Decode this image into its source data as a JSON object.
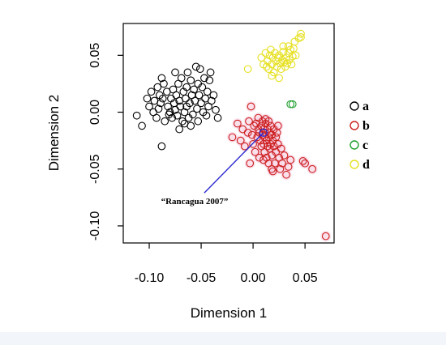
{
  "chart_data": {
    "type": "scatter",
    "xlabel": "Dimension 1",
    "ylabel": "Dimension 2",
    "xlim": [
      -0.125,
      0.078
    ],
    "ylim": [
      -0.115,
      0.078
    ],
    "xticks": [
      -0.1,
      -0.05,
      0.0,
      0.05
    ],
    "xtick_labels": [
      "-0.10",
      "-0.05",
      "0.00",
      "0.05"
    ],
    "yticks": [
      -0.1,
      -0.05,
      0.0,
      0.05
    ],
    "ytick_labels": [
      "-0.10",
      "-0.05",
      "0.00",
      "0.05"
    ],
    "grid": false,
    "legend_position": "right",
    "annotation": {
      "text": "“Rancagua 2007”",
      "arrow_tip": [
        0.01,
        -0.018
      ],
      "arrow_tail": [
        -0.047,
        -0.071
      ],
      "color": "#2b2bcf"
    },
    "series": [
      {
        "name": "a",
        "color": "#000000",
        "points": [
          [
            -0.112,
            -0.003
          ],
          [
            -0.107,
            -0.012
          ],
          [
            -0.102,
            0.012
          ],
          [
            -0.1,
            0.005
          ],
          [
            -0.098,
            0.018
          ],
          [
            -0.096,
            0.0
          ],
          [
            -0.095,
            0.01
          ],
          [
            -0.093,
            -0.005
          ],
          [
            -0.092,
            0.022
          ],
          [
            -0.091,
            0.003
          ],
          [
            -0.09,
            0.015
          ],
          [
            -0.089,
            0.008
          ],
          [
            -0.088,
            -0.03
          ],
          [
            -0.087,
            0.012
          ],
          [
            -0.086,
            0.025
          ],
          [
            -0.085,
            -0.008
          ],
          [
            -0.083,
            0.018
          ],
          [
            -0.082,
            0.005
          ],
          [
            -0.08,
            0.0
          ],
          [
            -0.079,
            0.012
          ],
          [
            -0.078,
            -0.005
          ],
          [
            -0.077,
            0.02
          ],
          [
            -0.076,
            0.008
          ],
          [
            -0.075,
            0.002
          ],
          [
            -0.074,
            0.015
          ],
          [
            -0.073,
            -0.003
          ],
          [
            -0.072,
            0.025
          ],
          [
            -0.071,
            0.01
          ],
          [
            -0.07,
            0.005
          ],
          [
            -0.069,
            0.03
          ],
          [
            -0.068,
            -0.008
          ],
          [
            -0.067,
            0.018
          ],
          [
            -0.066,
            0.0
          ],
          [
            -0.065,
            0.012
          ],
          [
            -0.064,
            0.022
          ],
          [
            -0.063,
            0.035
          ],
          [
            -0.062,
            -0.005
          ],
          [
            -0.061,
            0.008
          ],
          [
            -0.06,
            0.028
          ],
          [
            -0.059,
            0.015
          ],
          [
            -0.058,
            -0.002
          ],
          [
            -0.057,
            0.02
          ],
          [
            -0.056,
            0.01
          ],
          [
            -0.055,
            0.04
          ],
          [
            -0.054,
            0.003
          ],
          [
            -0.053,
            0.025
          ],
          [
            -0.052,
            0.015
          ],
          [
            -0.051,
            0.038
          ],
          [
            -0.05,
            0.008
          ],
          [
            -0.049,
            0.022
          ],
          [
            -0.048,
            0.0
          ],
          [
            -0.047,
            0.03
          ],
          [
            -0.046,
            0.012
          ],
          [
            -0.045,
            -0.003
          ],
          [
            -0.044,
            0.018
          ],
          [
            -0.043,
            0.005
          ],
          [
            -0.042,
            0.028
          ],
          [
            -0.041,
            0.035
          ],
          [
            -0.04,
            0.01
          ],
          [
            -0.038,
            0.015
          ],
          [
            -0.036,
            0.002
          ],
          [
            -0.034,
            -0.005
          ],
          [
            -0.071,
            -0.015
          ],
          [
            -0.066,
            -0.01
          ],
          [
            -0.06,
            -0.012
          ],
          [
            -0.053,
            -0.008
          ],
          [
            -0.081,
            -0.002
          ],
          [
            -0.075,
            0.035
          ],
          [
            -0.088,
            0.03
          ],
          [
            -0.064,
            0.005
          ]
        ]
      },
      {
        "name": "b",
        "color": "#cc1f1f",
        "points": [
          [
            -0.02,
            -0.022
          ],
          [
            -0.015,
            -0.01
          ],
          [
            -0.012,
            -0.025
          ],
          [
            -0.01,
            -0.015
          ],
          [
            -0.008,
            -0.03
          ],
          [
            -0.005,
            -0.018
          ],
          [
            -0.004,
            -0.008
          ],
          [
            -0.003,
            -0.045
          ],
          [
            -0.002,
            0.005
          ],
          [
            -0.001,
            -0.02
          ],
          [
            0.0,
            -0.028
          ],
          [
            0.001,
            -0.012
          ],
          [
            0.002,
            -0.035
          ],
          [
            0.003,
            -0.01
          ],
          [
            0.004,
            -0.022
          ],
          [
            0.005,
            -0.015
          ],
          [
            0.006,
            -0.04
          ],
          [
            0.006,
            -0.018
          ],
          [
            0.007,
            -0.025
          ],
          [
            0.008,
            -0.012
          ],
          [
            0.008,
            -0.03
          ],
          [
            0.009,
            -0.02
          ],
          [
            0.01,
            -0.015
          ],
          [
            0.01,
            -0.028
          ],
          [
            0.011,
            -0.022
          ],
          [
            0.011,
            -0.035
          ],
          [
            0.012,
            -0.018
          ],
          [
            0.012,
            -0.01
          ],
          [
            0.013,
            -0.025
          ],
          [
            0.013,
            -0.04
          ],
          [
            0.014,
            -0.015
          ],
          [
            0.014,
            -0.03
          ],
          [
            0.015,
            -0.022
          ],
          [
            0.015,
            -0.045
          ],
          [
            0.016,
            -0.018
          ],
          [
            0.016,
            -0.032
          ],
          [
            0.017,
            -0.012
          ],
          [
            0.017,
            -0.028
          ],
          [
            0.018,
            -0.02
          ],
          [
            0.018,
            -0.038
          ],
          [
            0.019,
            -0.025
          ],
          [
            0.02,
            -0.015
          ],
          [
            0.02,
            -0.03
          ],
          [
            0.021,
            -0.045
          ],
          [
            0.022,
            -0.022
          ],
          [
            0.022,
            -0.035
          ],
          [
            0.023,
            -0.018
          ],
          [
            0.024,
            -0.028
          ],
          [
            0.025,
            -0.04
          ],
          [
            0.026,
            -0.05
          ],
          [
            0.027,
            -0.032
          ],
          [
            0.028,
            -0.045
          ],
          [
            0.03,
            -0.038
          ],
          [
            0.032,
            -0.055
          ],
          [
            0.034,
            -0.048
          ],
          [
            0.036,
            -0.042
          ],
          [
            0.048,
            -0.043
          ],
          [
            0.05,
            -0.045
          ],
          [
            0.057,
            -0.05
          ],
          [
            0.07,
            -0.109
          ],
          [
            0.009,
            -0.008
          ],
          [
            0.012,
            -0.006
          ],
          [
            0.015,
            -0.008
          ],
          [
            0.005,
            -0.005
          ],
          [
            0.018,
            -0.05
          ],
          [
            0.024,
            -0.012
          ],
          [
            0.019,
            -0.052
          ],
          [
            0.01,
            -0.042
          ]
        ]
      },
      {
        "name": "c",
        "color": "#1f9e2e",
        "points": [
          [
            0.036,
            0.007
          ],
          [
            0.038,
            0.007
          ]
        ]
      },
      {
        "name": "d",
        "color": "#e6e020",
        "points": [
          [
            -0.005,
            0.038
          ],
          [
            0.008,
            0.048
          ],
          [
            0.01,
            0.042
          ],
          [
            0.012,
            0.052
          ],
          [
            0.014,
            0.045
          ],
          [
            0.015,
            0.038
          ],
          [
            0.016,
            0.05
          ],
          [
            0.017,
            0.055
          ],
          [
            0.018,
            0.042
          ],
          [
            0.019,
            0.048
          ],
          [
            0.02,
            0.035
          ],
          [
            0.021,
            0.052
          ],
          [
            0.022,
            0.045
          ],
          [
            0.023,
            0.04
          ],
          [
            0.024,
            0.048
          ],
          [
            0.025,
            0.05
          ],
          [
            0.026,
            0.043
          ],
          [
            0.027,
            0.038
          ],
          [
            0.028,
            0.046
          ],
          [
            0.029,
            0.053
          ],
          [
            0.03,
            0.044
          ],
          [
            0.031,
            0.04
          ],
          [
            0.032,
            0.048
          ],
          [
            0.033,
            0.043
          ],
          [
            0.034,
            0.052
          ],
          [
            0.035,
            0.046
          ],
          [
            0.036,
            0.055
          ],
          [
            0.037,
            0.042
          ],
          [
            0.038,
            0.049
          ],
          [
            0.039,
            0.056
          ],
          [
            0.04,
            0.062
          ],
          [
            0.041,
            0.05
          ],
          [
            0.044,
            0.065
          ],
          [
            0.046,
            0.069
          ],
          [
            0.046,
            0.066
          ],
          [
            0.018,
            0.032
          ],
          [
            0.025,
            0.03
          ],
          [
            0.013,
            0.04
          ],
          [
            0.029,
            0.058
          ],
          [
            0.034,
            0.058
          ]
        ]
      }
    ]
  }
}
